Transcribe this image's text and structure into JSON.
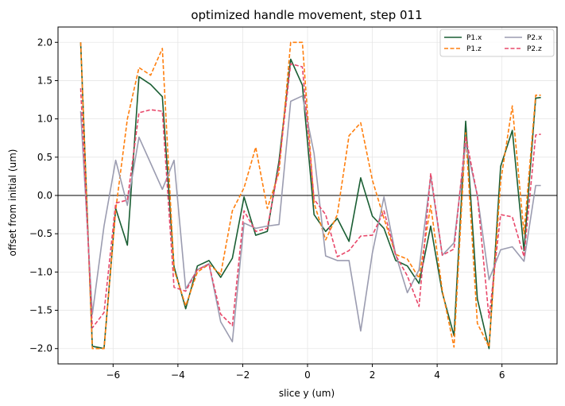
{
  "chart_data": {
    "type": "line",
    "title": "optimized handle movement, step 011",
    "xlabel": "slice y (um)",
    "ylabel": "offset from initial (um)",
    "xlim": [
      -7.7,
      7.7
    ],
    "ylim": [
      -2.2,
      2.2
    ],
    "xticks": [
      -6,
      -4,
      -2,
      0,
      2,
      4,
      6
    ],
    "xtick_labels": [
      "−6",
      "−4",
      "−2",
      "0",
      "2",
      "4",
      "6"
    ],
    "yticks": [
      -2.0,
      -1.5,
      -1.0,
      -0.5,
      0.0,
      0.5,
      1.0,
      1.5,
      2.0
    ],
    "ytick_labels": [
      "−2.0",
      "−1.5",
      "−1.0",
      "−0.5",
      "0.0",
      "0.5",
      "1.0",
      "1.5",
      "2.0"
    ],
    "grid": true,
    "zero_line": true,
    "legend_position": "top-right",
    "legend_columns": 2,
    "x": [
      -7.0,
      -6.64,
      -6.28,
      -5.92,
      -5.56,
      -5.2,
      -4.84,
      -4.48,
      -4.12,
      -3.76,
      -3.4,
      -3.04,
      -2.68,
      -2.32,
      -1.96,
      -1.6,
      -1.24,
      -0.88,
      -0.52,
      -0.16,
      0.2,
      0.56,
      0.92,
      1.28,
      1.64,
      2.0,
      2.36,
      2.72,
      3.08,
      3.44,
      3.8,
      4.16,
      4.52,
      4.88,
      5.24,
      5.6,
      5.96,
      6.32,
      6.68,
      7.04,
      7.2
    ],
    "series": [
      {
        "name": "P1.x",
        "color": "#1a5e33",
        "dash": "solid",
        "values": [
          2.0,
          -1.97,
          -2.0,
          -0.17,
          -0.65,
          1.55,
          1.45,
          1.29,
          -0.93,
          -1.48,
          -0.92,
          -0.85,
          -1.07,
          -0.82,
          -0.02,
          -0.52,
          -0.47,
          0.45,
          1.78,
          1.44,
          -0.25,
          -0.47,
          -0.3,
          -0.6,
          0.23,
          -0.27,
          -0.43,
          -0.85,
          -0.92,
          -1.15,
          -0.4,
          -1.27,
          -1.83,
          0.97,
          -1.35,
          -2.0,
          0.38,
          0.85,
          -0.72,
          1.27,
          1.28
        ]
      },
      {
        "name": "P1.z",
        "color": "#ff7f0e",
        "dash": "dashed",
        "values": [
          2.0,
          -2.0,
          -2.0,
          -0.19,
          1.0,
          1.67,
          1.57,
          1.92,
          -0.97,
          -1.44,
          -1.0,
          -0.9,
          -1.03,
          -0.2,
          0.1,
          0.63,
          -0.17,
          0.3,
          2.0,
          2.0,
          -0.1,
          -0.58,
          -0.25,
          0.78,
          0.95,
          0.2,
          -0.3,
          -0.77,
          -0.83,
          -1.08,
          -0.13,
          -1.24,
          -1.98,
          0.82,
          -1.67,
          -1.98,
          0.18,
          1.17,
          -0.5,
          1.31,
          1.31
        ]
      },
      {
        "name": "P2.x",
        "color": "#9b9cb0",
        "dash": "solid",
        "values": [
          1.1,
          -1.55,
          -0.4,
          0.46,
          -0.13,
          0.76,
          0.42,
          0.08,
          0.46,
          -1.22,
          -0.97,
          -0.89,
          -1.65,
          -1.91,
          -0.36,
          -0.43,
          -0.4,
          -0.38,
          1.23,
          1.3,
          0.55,
          -0.79,
          -0.85,
          -0.85,
          -1.77,
          -0.75,
          -0.02,
          -0.77,
          -1.27,
          -0.97,
          0.25,
          -0.78,
          -0.62,
          0.68,
          0.0,
          -1.1,
          -0.71,
          -0.67,
          -0.86,
          0.13,
          0.13
        ]
      },
      {
        "name": "P2.z",
        "color": "#e8486a",
        "dash": "dashed",
        "values": [
          1.4,
          -1.73,
          -1.53,
          -0.1,
          -0.06,
          1.08,
          1.12,
          1.1,
          -1.2,
          -1.25,
          -0.97,
          -0.9,
          -1.55,
          -1.7,
          -0.2,
          -0.47,
          -0.43,
          0.39,
          1.72,
          1.68,
          -0.05,
          -0.25,
          -0.8,
          -0.72,
          -0.53,
          -0.52,
          -0.2,
          -0.78,
          -1.05,
          -1.45,
          0.29,
          -0.78,
          -0.7,
          0.77,
          0.0,
          -1.6,
          -0.25,
          -0.28,
          -0.8,
          0.79,
          0.8
        ]
      }
    ]
  }
}
